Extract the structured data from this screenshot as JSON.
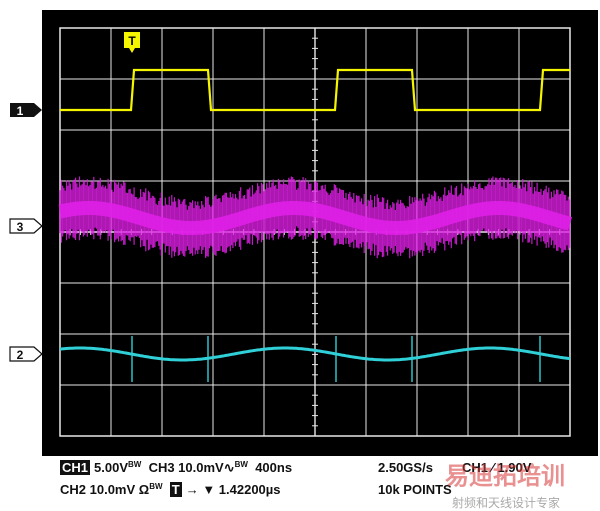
{
  "markers": {
    "ch1": "1",
    "ch3": "3",
    "ch2": "2",
    "trigger": "T"
  },
  "readout": {
    "ch1_badge": "CH1",
    "ch1_scale": "5.00V",
    "bw_mark": "BW",
    "ch3_label": "CH3 10.0mV",
    "timebase": "400ns",
    "sample_rate": "2.50GS/s",
    "trigger_source": "CH1",
    "trigger_level": "1.90V",
    "ch2_label": "CH2 10.0mV Ω",
    "trigger_icon": "T",
    "trigger_delay": "→ ▼ 1.42200µs",
    "points": "10k POINTS"
  },
  "watermark": {
    "logo": "易迪拓培训",
    "tagline": "射频和天线设计专家"
  },
  "colors": {
    "ch1": "#f5f500",
    "ch3": "#e020e8",
    "ch2": "#30d0d8",
    "grid": "#e8e8e8",
    "screen": "#000000"
  }
}
